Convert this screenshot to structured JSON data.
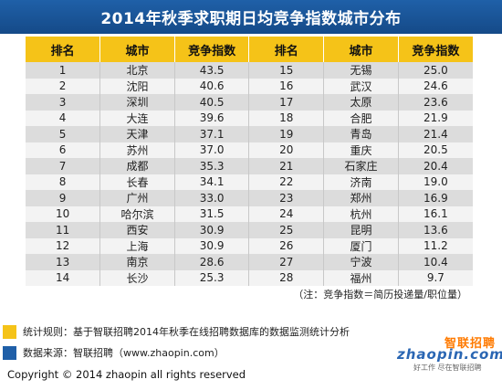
{
  "title": "2014年秋季求职期日均竞争指数城市分布",
  "headers": [
    "排名",
    "城市",
    "竞争指数",
    "排名",
    "城市",
    "竞争指数"
  ],
  "rows": [
    [
      "1",
      "北京",
      "43.5",
      "15",
      "无锡",
      "25.0"
    ],
    [
      "2",
      "沈阳",
      "40.6",
      "16",
      "武汉",
      "24.6"
    ],
    [
      "3",
      "深圳",
      "40.5",
      "17",
      "太原",
      "23.6"
    ],
    [
      "4",
      "大连",
      "39.6",
      "18",
      "合肥",
      "21.9"
    ],
    [
      "5",
      "天津",
      "37.1",
      "19",
      "青岛",
      "21.4"
    ],
    [
      "6",
      "苏州",
      "37.0",
      "20",
      "重庆",
      "20.5"
    ],
    [
      "7",
      "成都",
      "35.3",
      "21",
      "石家庄",
      "20.4"
    ],
    [
      "8",
      "长春",
      "34.1",
      "22",
      "济南",
      "19.0"
    ],
    [
      "9",
      "广州",
      "33.0",
      "23",
      "郑州",
      "16.9"
    ],
    [
      "10",
      "哈尔滨",
      "31.5",
      "24",
      "杭州",
      "16.1"
    ],
    [
      "11",
      "西安",
      "30.9",
      "25",
      "昆明",
      "13.6"
    ],
    [
      "12",
      "上海",
      "30.9",
      "26",
      "厦门",
      "11.2"
    ],
    [
      "13",
      "南京",
      "28.6",
      "27",
      "宁波",
      "10.4"
    ],
    [
      "14",
      "长沙",
      "25.3",
      "28",
      "福州",
      "9.7"
    ]
  ],
  "note": "（注：竞争指数＝简历投递量/职位量）",
  "rule_text": "统计规则：基于智联招聘2014年秋季在线招聘数据库的数据监测统计分析",
  "source_text": "数据来源：智联招聘（www.zhaopin.com）",
  "copyright": "Copyright   ©   2014 zhaopin all rights reserved",
  "brand": {
    "name_cn": "智联招聘",
    "name_en": "zhaopin.com",
    "slogan": "好工作 尽在智联招聘"
  },
  "colors": {
    "title_bar": "#1f60a8",
    "header": "#f5c318",
    "rule_swatch": "#f5c318",
    "source_swatch": "#1f5fa8",
    "brand_orange": "#ff7a00",
    "brand_blue": "#2a66b3"
  }
}
